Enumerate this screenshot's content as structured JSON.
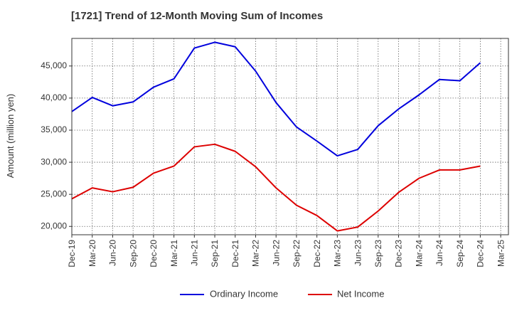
{
  "chart_data": {
    "type": "line",
    "title": "[1721]  Trend of 12-Month Moving Sum of Incomes",
    "xlabel": "",
    "ylabel": "Amount (million yen)",
    "categories": [
      "Dec-19",
      "Mar-20",
      "Jun-20",
      "Sep-20",
      "Dec-20",
      "Mar-21",
      "Jun-21",
      "Sep-21",
      "Dec-21",
      "Mar-22",
      "Jun-22",
      "Sep-22",
      "Dec-22",
      "Mar-23",
      "Jun-23",
      "Sep-23",
      "Dec-23",
      "Mar-24",
      "Jun-24",
      "Sep-24",
      "Dec-24",
      "Mar-25"
    ],
    "y_ticks": [
      20000,
      25000,
      30000,
      35000,
      40000,
      45000
    ],
    "y_tick_labels": [
      "20,000",
      "25,000",
      "30,000",
      "35,000",
      "40,000",
      "45,000"
    ],
    "ylim": [
      18700,
      49300
    ],
    "grid": true,
    "legend_position": "bottom",
    "series": [
      {
        "name": "Ordinary Income",
        "color": "#0000dd",
        "values": [
          37900,
          40100,
          38800,
          39400,
          41700,
          43000,
          47800,
          48700,
          48000,
          44200,
          39300,
          35500,
          33300,
          31000,
          32000,
          35700,
          38300,
          40500,
          42900,
          42700,
          45500,
          null
        ]
      },
      {
        "name": "Net Income",
        "color": "#dd0000",
        "values": [
          24300,
          26000,
          25400,
          26100,
          28300,
          29400,
          32400,
          32800,
          31700,
          29300,
          26000,
          23300,
          21700,
          19300,
          19900,
          22400,
          25300,
          27500,
          28800,
          28800,
          29400,
          null
        ]
      }
    ]
  }
}
